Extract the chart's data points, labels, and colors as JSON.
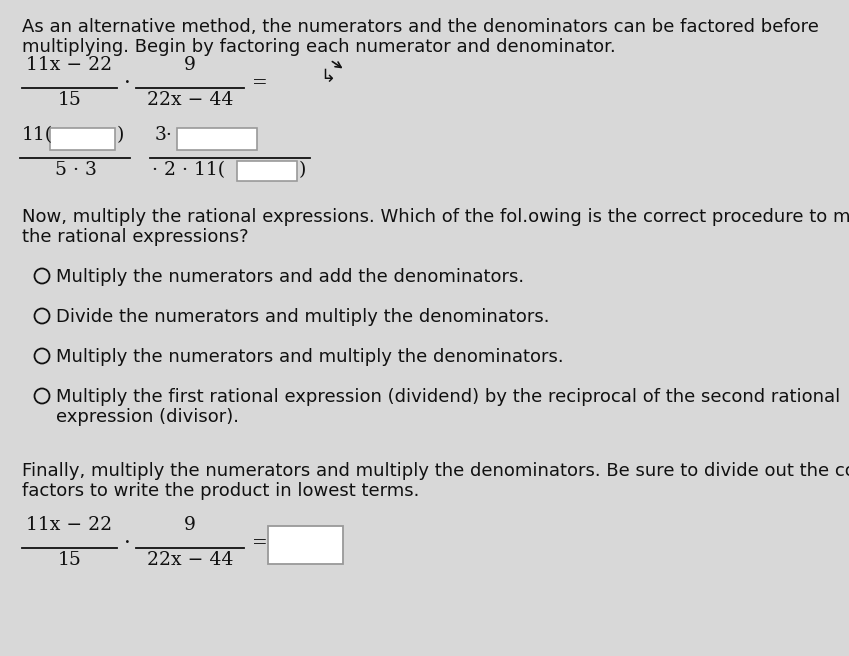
{
  "bg_color": "#d8d8d8",
  "text_color": "#111111",
  "title_text1": "As an alternative method, the numerators and the denominators can be factored before",
  "title_text2": "multiplying. Begin by factoring each numerator and denominator.",
  "now_text1": "Now, multiply the rational expressions. Which of the fol.owing is the correct procedure to multip",
  "now_text2": "the rational expressions?",
  "options": [
    "Multiply the numerators and add the denominators.",
    "Divide the numerators and multiply the denominators.",
    "Multiply the numerators and multiply the denominators.",
    "Multiply the first rational expression (dividend) by the reciprocal of the second rational",
    "expression (divisor)."
  ],
  "finally_text1": "Finally, multiply the numerators and multiply the denominators. Be sure to divide out the commo",
  "finally_text2": "factors to write the product in lowest terms.",
  "fs_main": 13.0,
  "fs_math": 13.5
}
